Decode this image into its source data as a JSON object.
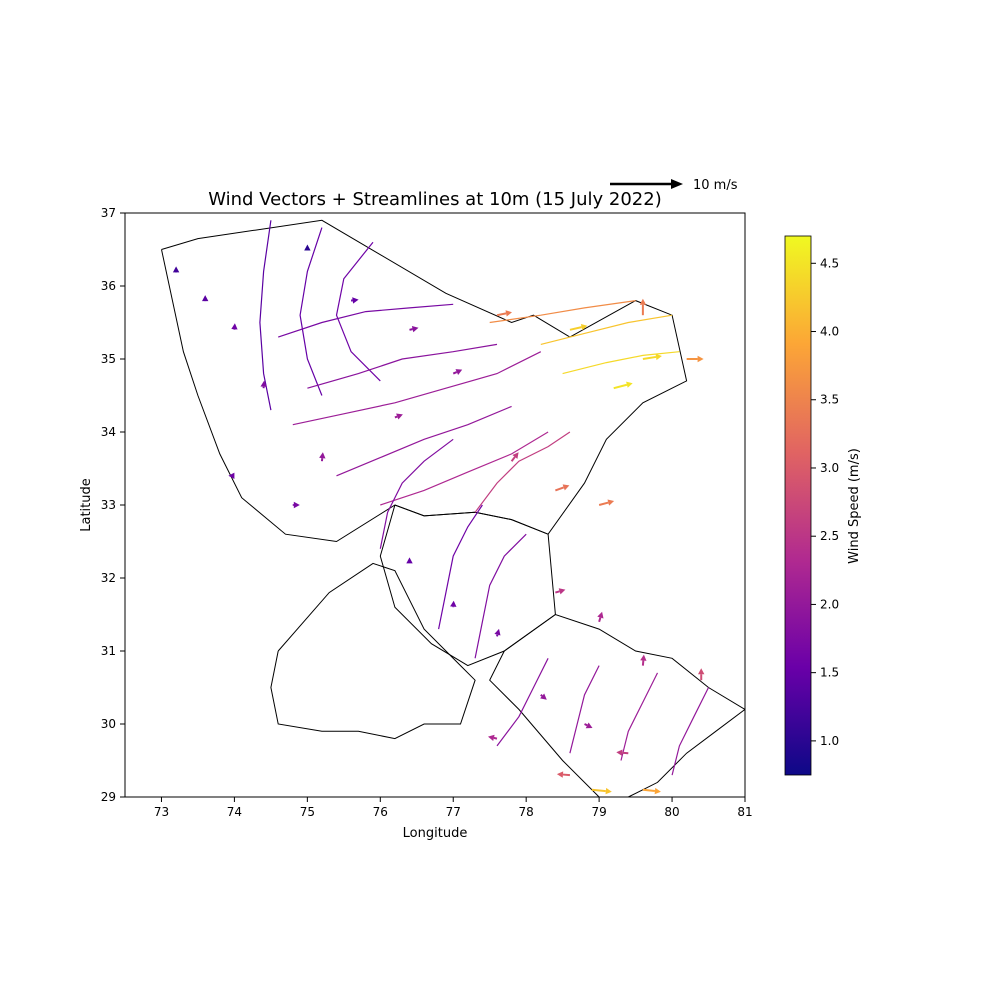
{
  "chart_data": {
    "type": "quiver",
    "title": "Wind Vectors + Streamlines at 10m (15 July 2022)",
    "xlabel": "Longitude",
    "ylabel": "Latitude",
    "xlim": [
      72.5,
      81
    ],
    "ylim": [
      29,
      37
    ],
    "x_ticks": [
      "73",
      "74",
      "75",
      "76",
      "77",
      "78",
      "79",
      "80",
      "81"
    ],
    "y_ticks": [
      "29",
      "30",
      "31",
      "32",
      "33",
      "34",
      "35",
      "36",
      "37"
    ],
    "grid": false,
    "colormap": "plasma",
    "colorbar": {
      "label": "Wind Speed (m/s)",
      "range": [
        0.75,
        4.7
      ],
      "ticks": [
        "1.0",
        "1.5",
        "2.0",
        "2.5",
        "3.0",
        "3.5",
        "4.0",
        "4.5"
      ]
    },
    "quiver_key": {
      "label": "10 m/s",
      "value": 10
    },
    "regions": [
      {
        "lon": [
          73.0,
          73.5,
          75.2,
          76.9,
          77.8,
          78.1,
          78.6,
          79.5,
          80.0,
          80.2,
          79.6,
          79.1,
          78.8,
          78.3,
          77.8,
          77.3,
          76.6,
          76.2,
          75.4,
          74.7,
          74.1,
          73.8,
          73.5,
          73.3,
          73.0
        ],
        "lat": [
          36.5,
          36.65,
          36.9,
          35.9,
          35.5,
          35.6,
          35.3,
          35.8,
          35.6,
          34.7,
          34.4,
          33.9,
          33.3,
          32.6,
          32.8,
          32.9,
          32.85,
          33.0,
          32.5,
          32.6,
          33.1,
          33.7,
          34.5,
          35.1,
          36.5
        ]
      },
      {
        "lon": [
          76.2,
          76.6,
          77.3,
          77.8,
          78.3,
          78.4,
          77.7,
          77.2,
          76.7,
          76.2,
          76.0,
          76.2
        ],
        "lat": [
          33.0,
          32.85,
          32.9,
          32.8,
          32.6,
          31.5,
          31.0,
          30.8,
          31.1,
          31.6,
          32.3,
          33.0
        ]
      },
      {
        "lon": [
          77.7,
          78.4,
          79.0,
          79.5,
          80.0,
          80.5,
          81.0,
          80.6,
          80.2,
          79.8,
          79.4,
          79.0,
          78.5,
          77.9,
          77.5,
          77.7
        ],
        "lat": [
          31.0,
          31.5,
          31.3,
          31.0,
          30.9,
          30.5,
          30.2,
          29.9,
          29.6,
          29.2,
          29.0,
          29.0,
          29.5,
          30.2,
          30.6,
          31.0
        ]
      },
      {
        "lon": [
          74.6,
          75.3,
          75.9,
          76.2,
          76.6,
          77.1,
          77.3,
          77.1,
          76.6,
          76.2,
          75.7,
          75.2,
          74.6,
          74.5,
          74.6
        ],
        "lat": [
          31.0,
          31.8,
          32.2,
          32.1,
          31.3,
          30.8,
          30.6,
          30.0,
          30.0,
          29.8,
          29.9,
          29.9,
          30.0,
          30.5,
          31.0
        ]
      }
    ],
    "streamlines": [
      {
        "lon": [
          74.5,
          74.4,
          74.35,
          74.4,
          74.5
        ],
        "lat": [
          36.9,
          36.2,
          35.5,
          34.8,
          34.3
        ],
        "speed": 1.4
      },
      {
        "lon": [
          75.2,
          75.0,
          74.9,
          75.0,
          75.2
        ],
        "lat": [
          36.8,
          36.2,
          35.6,
          35.0,
          34.5
        ],
        "speed": 1.5
      },
      {
        "lon": [
          75.9,
          75.5,
          75.4,
          75.6,
          76.0
        ],
        "lat": [
          36.6,
          36.1,
          35.6,
          35.1,
          34.7
        ],
        "speed": 1.6
      },
      {
        "lon": [
          74.6,
          75.2,
          75.8,
          76.4,
          77.0
        ],
        "lat": [
          35.3,
          35.5,
          35.65,
          35.7,
          35.75
        ],
        "speed": 1.7
      },
      {
        "lon": [
          75.0,
          75.7,
          76.3,
          77.0,
          77.6
        ],
        "lat": [
          34.6,
          34.8,
          35.0,
          35.1,
          35.2
        ],
        "speed": 1.9
      },
      {
        "lon": [
          74.8,
          75.5,
          76.2,
          76.9,
          77.6,
          78.2
        ],
        "lat": [
          34.1,
          34.25,
          34.4,
          34.6,
          34.8,
          35.1
        ],
        "speed": 2.1
      },
      {
        "lon": [
          75.4,
          76.0,
          76.6,
          77.2,
          77.8
        ],
        "lat": [
          33.4,
          33.65,
          33.9,
          34.1,
          34.35
        ],
        "speed": 2.0
      },
      {
        "lon": [
          76.0,
          76.6,
          77.2,
          77.8,
          78.3
        ],
        "lat": [
          33.0,
          33.2,
          33.45,
          33.7,
          34.0
        ],
        "speed": 2.3
      },
      {
        "lon": [
          76.0,
          76.1,
          76.3,
          76.6,
          77.0
        ],
        "lat": [
          32.4,
          32.9,
          33.3,
          33.6,
          33.9
        ],
        "speed": 1.8
      },
      {
        "lon": [
          77.3,
          77.6,
          77.9,
          78.3,
          78.6
        ],
        "lat": [
          32.9,
          33.3,
          33.6,
          33.8,
          34.0
        ],
        "speed": 2.6
      },
      {
        "lon": [
          76.8,
          76.9,
          77.0,
          77.2,
          77.4
        ],
        "lat": [
          31.3,
          31.8,
          32.3,
          32.7,
          33.0
        ],
        "speed": 1.6
      },
      {
        "lon": [
          77.3,
          77.4,
          77.5,
          77.7,
          78.0
        ],
        "lat": [
          30.9,
          31.4,
          31.9,
          32.3,
          32.6
        ],
        "speed": 1.8
      },
      {
        "lon": [
          78.5,
          79.1,
          79.6,
          80.1
        ],
        "lat": [
          34.8,
          34.95,
          35.05,
          35.1
        ],
        "speed": 4.4
      },
      {
        "lon": [
          78.2,
          78.8,
          79.4,
          80.0
        ],
        "lat": [
          35.2,
          35.35,
          35.5,
          35.6
        ],
        "speed": 4.2
      },
      {
        "lon": [
          77.5,
          78.2,
          78.8,
          79.5
        ],
        "lat": [
          35.5,
          35.6,
          35.7,
          35.8
        ],
        "speed": 3.6
      },
      {
        "lon": [
          78.3,
          78.1,
          77.9,
          77.6
        ],
        "lat": [
          30.9,
          30.5,
          30.1,
          29.7
        ],
        "speed": 1.9
      },
      {
        "lon": [
          79.0,
          78.8,
          78.7,
          78.6
        ],
        "lat": [
          30.8,
          30.4,
          30.0,
          29.6
        ],
        "speed": 2.0
      },
      {
        "lon": [
          79.8,
          79.6,
          79.4,
          79.3
        ],
        "lat": [
          30.7,
          30.3,
          29.9,
          29.5
        ],
        "speed": 2.1
      },
      {
        "lon": [
          80.5,
          80.3,
          80.1,
          80.0
        ],
        "lat": [
          30.5,
          30.1,
          29.7,
          29.3
        ],
        "speed": 2.0
      }
    ],
    "vector_samples": [
      {
        "lon": 73.2,
        "lat": 36.2,
        "u": 0.0,
        "v": 1.0,
        "speed": 1.2
      },
      {
        "lon": 73.6,
        "lat": 35.8,
        "u": 0.0,
        "v": 1.1,
        "speed": 1.4
      },
      {
        "lon": 74.0,
        "lat": 35.4,
        "u": 0.1,
        "v": 1.3,
        "speed": 1.6
      },
      {
        "lon": 74.4,
        "lat": 34.6,
        "u": 0.1,
        "v": 1.5,
        "speed": 1.8
      },
      {
        "lon": 75.0,
        "lat": 36.5,
        "u": 0.0,
        "v": 1.0,
        "speed": 1.0
      },
      {
        "lon": 75.6,
        "lat": 35.8,
        "u": 1.5,
        "v": 0.2,
        "speed": 1.5
      },
      {
        "lon": 76.4,
        "lat": 35.4,
        "u": 1.8,
        "v": 0.4,
        "speed": 1.9
      },
      {
        "lon": 77.0,
        "lat": 34.8,
        "u": 1.8,
        "v": 0.8,
        "speed": 2.0
      },
      {
        "lon": 76.2,
        "lat": 34.2,
        "u": 1.6,
        "v": 0.6,
        "speed": 2.1
      },
      {
        "lon": 75.2,
        "lat": 33.6,
        "u": 0.2,
        "v": 1.8,
        "speed": 2.0
      },
      {
        "lon": 74.0,
        "lat": 33.4,
        "u": -1.2,
        "v": 0.0,
        "speed": 1.6
      },
      {
        "lon": 74.8,
        "lat": 33.0,
        "u": 1.4,
        "v": 0.0,
        "speed": 1.7
      },
      {
        "lon": 76.4,
        "lat": 32.2,
        "u": 0.0,
        "v": 1.2,
        "speed": 1.5
      },
      {
        "lon": 77.0,
        "lat": 31.6,
        "u": 0.1,
        "v": 1.3,
        "speed": 1.6
      },
      {
        "lon": 77.6,
        "lat": 31.2,
        "u": 0.4,
        "v": 1.5,
        "speed": 1.7
      },
      {
        "lon": 77.8,
        "lat": 33.6,
        "u": 1.4,
        "v": 1.8,
        "speed": 2.6
      },
      {
        "lon": 78.4,
        "lat": 33.2,
        "u": 2.8,
        "v": 1.0,
        "speed": 3.3
      },
      {
        "lon": 79.0,
        "lat": 33.0,
        "u": 3.0,
        "v": 0.8,
        "speed": 3.4
      },
      {
        "lon": 79.2,
        "lat": 34.6,
        "u": 3.8,
        "v": 1.0,
        "speed": 4.5
      },
      {
        "lon": 79.6,
        "lat": 35.0,
        "u": 3.8,
        "v": 0.6,
        "speed": 4.4
      },
      {
        "lon": 78.6,
        "lat": 35.4,
        "u": 3.5,
        "v": 0.8,
        "speed": 4.3
      },
      {
        "lon": 77.6,
        "lat": 35.6,
        "u": 3.0,
        "v": 0.6,
        "speed": 3.4
      },
      {
        "lon": 79.6,
        "lat": 35.6,
        "u": 0.0,
        "v": 3.3,
        "speed": 3.4
      },
      {
        "lon": 80.2,
        "lat": 35.0,
        "u": 3.4,
        "v": 0.0,
        "speed": 3.7
      },
      {
        "lon": 78.4,
        "lat": 31.8,
        "u": 2.0,
        "v": 0.6,
        "speed": 2.5
      },
      {
        "lon": 79.0,
        "lat": 31.4,
        "u": 0.6,
        "v": 2.0,
        "speed": 2.3
      },
      {
        "lon": 79.6,
        "lat": 30.8,
        "u": 0.2,
        "v": 2.2,
        "speed": 2.4
      },
      {
        "lon": 80.4,
        "lat": 30.6,
        "u": 0.0,
        "v": 2.4,
        "speed": 2.8
      },
      {
        "lon": 78.2,
        "lat": 30.4,
        "u": 1.2,
        "v": -1.0,
        "speed": 2.0
      },
      {
        "lon": 78.8,
        "lat": 30.0,
        "u": 1.6,
        "v": -0.8,
        "speed": 2.1
      },
      {
        "lon": 79.4,
        "lat": 29.6,
        "u": -2.4,
        "v": 0.2,
        "speed": 2.6
      },
      {
        "lon": 78.6,
        "lat": 29.3,
        "u": -2.6,
        "v": 0.2,
        "speed": 3.0
      },
      {
        "lon": 79.6,
        "lat": 29.1,
        "u": 3.6,
        "v": -0.4,
        "speed": 3.9
      },
      {
        "lon": 78.9,
        "lat": 29.1,
        "u": 4.0,
        "v": -0.4,
        "speed": 4.2
      },
      {
        "lon": 77.6,
        "lat": 29.8,
        "u": -1.8,
        "v": 0.4,
        "speed": 2.3
      }
    ]
  }
}
